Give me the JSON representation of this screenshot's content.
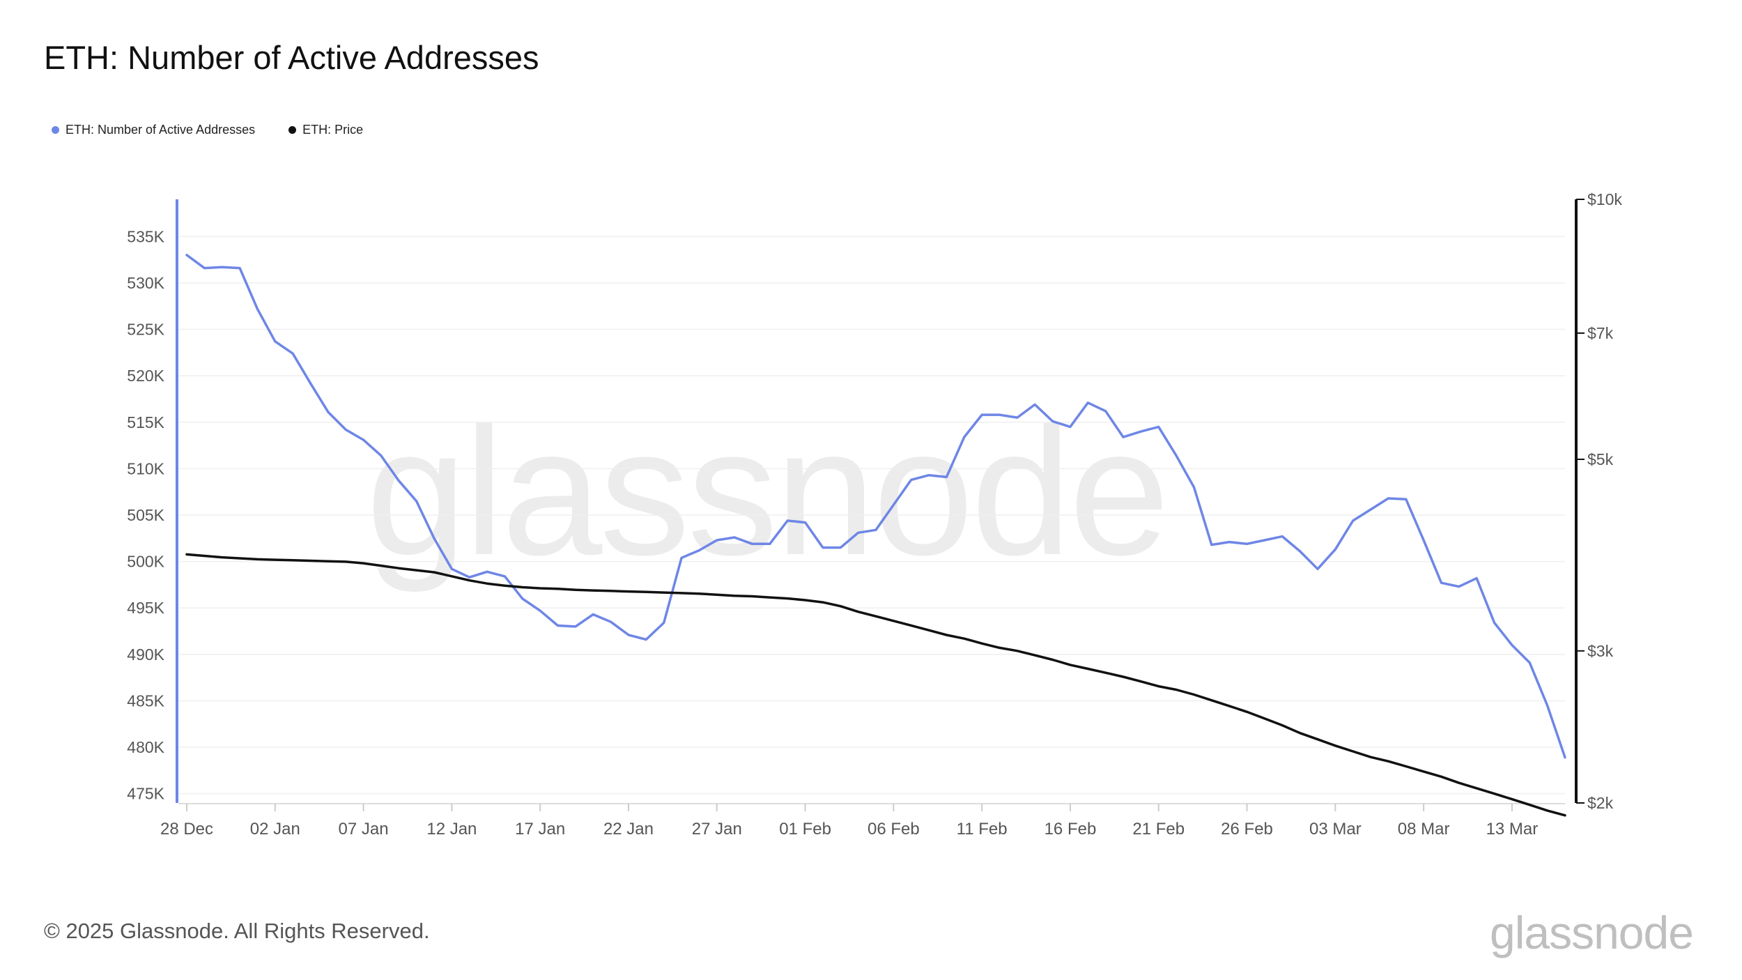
{
  "title": "ETH: Number of Active Addresses",
  "watermark": "glassnode",
  "footer": {
    "copyright": "© 2025 Glassnode. All Rights Reserved.",
    "logo": "glassnode"
  },
  "colors": {
    "active_addresses": "#6e86e6",
    "price": "#111111",
    "grid": "#efefef",
    "axis_text": "#555555"
  },
  "chart_data": {
    "type": "line",
    "title": "ETH: Number of Active Addresses",
    "legend_position": "top-left",
    "grid": true,
    "x_tick_labels": [
      "28 Dec",
      "02 Jan",
      "07 Jan",
      "12 Jan",
      "17 Jan",
      "22 Jan",
      "27 Jan",
      "01 Feb",
      "06 Feb",
      "11 Feb",
      "16 Feb",
      "21 Feb",
      "26 Feb",
      "03 Mar",
      "08 Mar",
      "13 Mar"
    ],
    "x_tick_day_index": [
      0,
      5,
      10,
      15,
      20,
      25,
      30,
      35,
      40,
      45,
      50,
      55,
      60,
      65,
      70,
      75
    ],
    "x_range_days": [
      0,
      78
    ],
    "y_left": {
      "ticks": [
        475,
        480,
        485,
        490,
        495,
        500,
        505,
        510,
        515,
        520,
        525,
        530,
        535
      ],
      "tick_labels": [
        "475K",
        "480K",
        "485K",
        "490K",
        "495K",
        "500K",
        "505K",
        "510K",
        "515K",
        "520K",
        "525K",
        "530K",
        "535K"
      ],
      "range": [
        474,
        539
      ],
      "unit": "thousands"
    },
    "y_right": {
      "scale": "log",
      "ticks": [
        2000,
        3000,
        5000,
        7000,
        10000
      ],
      "tick_labels": [
        "$2k",
        "$3k",
        "$5k",
        "$7k",
        "$10k"
      ],
      "range": [
        2000,
        10000
      ]
    },
    "series": [
      {
        "name": "ETH: Number of Active Addresses",
        "axis": "left",
        "color": "#6e86e6",
        "values": [
          533.0,
          531.6,
          531.7,
          531.6,
          527.2,
          523.7,
          522.4,
          519.2,
          516.1,
          514.2,
          513.1,
          511.4,
          508.7,
          506.5,
          502.5,
          499.2,
          498.3,
          498.9,
          498.4,
          496.0,
          494.7,
          493.1,
          493.0,
          494.3,
          493.5,
          492.1,
          491.6,
          493.4,
          500.4,
          501.2,
          502.3,
          502.6,
          501.9,
          501.9,
          504.4,
          504.2,
          501.5,
          501.5,
          503.1,
          503.4,
          506.1,
          508.8,
          509.3,
          509.1,
          513.4,
          515.8,
          515.8,
          515.5,
          516.9,
          515.1,
          514.5,
          517.1,
          516.2,
          513.4,
          514.0,
          514.5,
          511.4,
          508.0,
          501.8,
          502.1,
          501.9,
          502.3,
          502.7,
          501.1,
          499.2,
          501.3,
          504.4,
          505.6,
          506.8,
          506.7,
          502.3,
          497.7,
          497.3,
          498.2,
          493.4,
          491.0,
          489.1,
          484.5,
          478.9
        ]
      },
      {
        "name": "ETH: Price",
        "axis": "right",
        "color": "#111111",
        "values": [
          3880,
          3865,
          3850,
          3840,
          3830,
          3825,
          3820,
          3815,
          3810,
          3805,
          3790,
          3765,
          3740,
          3720,
          3700,
          3660,
          3620,
          3590,
          3570,
          3555,
          3545,
          3540,
          3530,
          3525,
          3520,
          3515,
          3510,
          3505,
          3500,
          3495,
          3485,
          3475,
          3470,
          3460,
          3450,
          3435,
          3415,
          3380,
          3330,
          3290,
          3250,
          3210,
          3170,
          3130,
          3100,
          3060,
          3025,
          3000,
          2965,
          2930,
          2890,
          2860,
          2830,
          2800,
          2765,
          2730,
          2705,
          2670,
          2630,
          2590,
          2550,
          2505,
          2460,
          2410,
          2370,
          2330,
          2295,
          2260,
          2235,
          2205,
          2175,
          2145,
          2110,
          2080,
          2050,
          2020,
          1990,
          1960,
          1935
        ]
      }
    ]
  }
}
